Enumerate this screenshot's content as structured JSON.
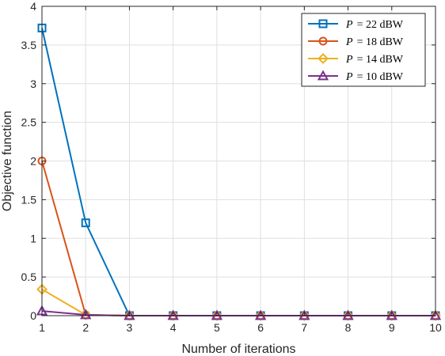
{
  "chart_data": {
    "type": "line",
    "title": "",
    "xlabel": "Number of iterations",
    "ylabel": "Objective function",
    "x": [
      1,
      2,
      3,
      4,
      5,
      6,
      7,
      8,
      9,
      10
    ],
    "xlim": [
      1,
      10
    ],
    "ylim": [
      0,
      4
    ],
    "xticks": [
      "1",
      "2",
      "3",
      "4",
      "5",
      "6",
      "7",
      "8",
      "9",
      "10"
    ],
    "yticks": [
      "0",
      "0.5",
      "1",
      "1.5",
      "2",
      "2.5",
      "3",
      "3.5",
      "4"
    ],
    "grid": true,
    "legend_position": "top-right",
    "series": [
      {
        "name": "P = 22 dBW",
        "legend_var": "P",
        "legend_rest": "= 22 dBW",
        "color": "#0072BD",
        "marker": "square",
        "values": [
          3.72,
          1.2,
          0,
          0,
          0,
          0,
          0,
          0,
          0,
          0
        ]
      },
      {
        "name": "P = 18 dBW",
        "legend_var": "P",
        "legend_rest": "= 18 dBW",
        "color": "#D95319",
        "marker": "circle",
        "values": [
          2.0,
          0.01,
          0,
          0,
          0,
          0,
          0,
          0,
          0,
          0
        ]
      },
      {
        "name": "P = 14 dBW",
        "legend_var": "P",
        "legend_rest": "= 14 dBW",
        "color": "#EDB120",
        "marker": "diamond",
        "values": [
          0.34,
          0.01,
          0,
          0,
          0,
          0,
          0,
          0,
          0,
          0
        ]
      },
      {
        "name": "P = 10 dBW",
        "legend_var": "P",
        "legend_rest": "= 10 dBW",
        "color": "#7E2F8E",
        "marker": "triangle",
        "values": [
          0.06,
          0.01,
          0,
          0,
          0,
          0,
          0,
          0,
          0,
          0
        ]
      }
    ]
  }
}
